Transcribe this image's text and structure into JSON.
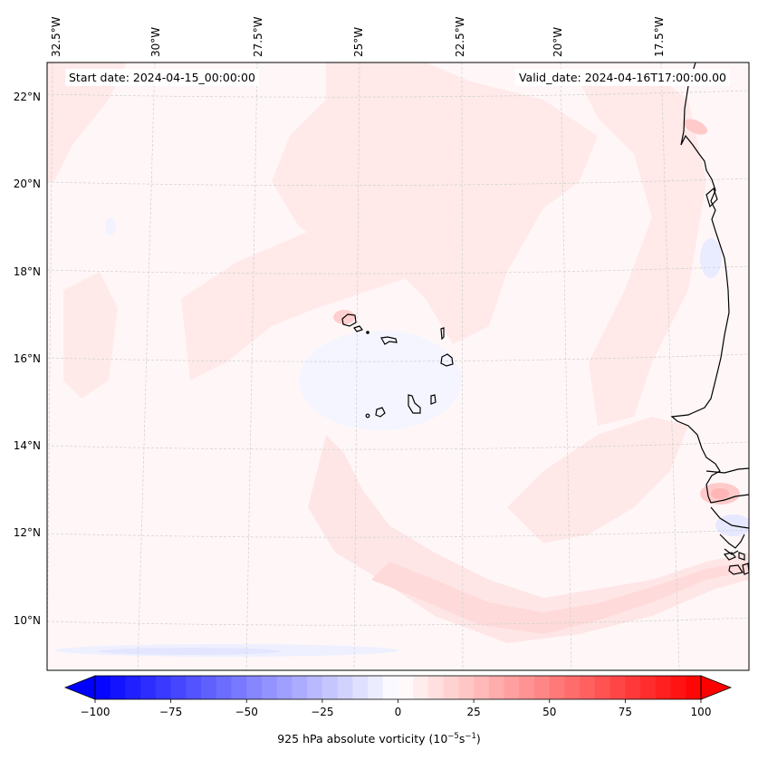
{
  "map": {
    "projection": "Lambert conformal",
    "start_date_label": "Start date: 2024-04-15_00:00:00",
    "valid_date_label": "Valid_date: 2024-04-16T17:00:00.00",
    "longitude_labels": [
      "32.5°W",
      "30°W",
      "27.5°W",
      "25°W",
      "22.5°W",
      "20°W",
      "17.5°W"
    ],
    "latitude_labels": [
      "22°N",
      "20°N",
      "18°N",
      "16°N",
      "14°N",
      "12°N",
      "10°N"
    ],
    "features": [
      "Cape Verde islands",
      "West African coastline (Mauritania, Senegal, Gambia, Guinea-Bissau)"
    ],
    "colors": {
      "ocean_background": "#fff7f7",
      "light_positive": "#ffe8e8",
      "medium_positive": "#ffd6d6",
      "strong_positive": "#ffbcbc",
      "light_negative": "#eef0ff",
      "coastline": "#000000",
      "gridline": "#cfcfcf"
    }
  },
  "colorbar": {
    "label_main": "925 hPa absolute vorticity (10",
    "label_exp1": "−5",
    "label_mid": "s",
    "label_exp2": "−1",
    "label_end": ")",
    "ticks": [
      "−100",
      "−75",
      "−50",
      "−25",
      "0",
      "25",
      "50",
      "75",
      "100"
    ],
    "tick_values": [
      -100,
      -75,
      -50,
      -25,
      0,
      25,
      50,
      75,
      100
    ],
    "vmin": -100,
    "vmax": 100,
    "levels_step": 5,
    "extend": "both",
    "colormap": "bwr",
    "min_color": "#0000ff",
    "mid_color": "#ffffff",
    "max_color": "#ff0000"
  }
}
